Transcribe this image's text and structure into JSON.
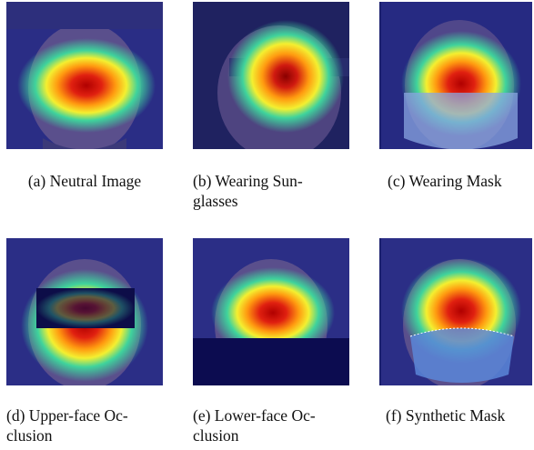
{
  "figure": {
    "panels": [
      {
        "id": "a",
        "caption_line1": "(a) Neutral Image",
        "caption_line2": "",
        "occlusion": "none"
      },
      {
        "id": "b",
        "caption_line1": "(b)  Wearing  Sun-",
        "caption_line2": "glasses",
        "occlusion": "sunglasses"
      },
      {
        "id": "c",
        "caption_line1": "(c) Wearing Mask",
        "caption_line2": "",
        "occlusion": "mask"
      },
      {
        "id": "d",
        "caption_line1": "(d)  Upper-face  Oc-",
        "caption_line2": "clusion",
        "occlusion": "upper-face block"
      },
      {
        "id": "e",
        "caption_line1": "(e)  Lower-face  Oc-",
        "caption_line2": "clusion",
        "occlusion": "lower-face block"
      },
      {
        "id": "f",
        "caption_line1": "(f) Synthetic Mask",
        "caption_line2": "",
        "occlusion": "synthetic mask"
      }
    ],
    "colors": {
      "background_tint": "#24288a",
      "heat_core": "#c00000",
      "heat_mid": "#ffd21a",
      "heat_outer": "#27c3a0",
      "mask_blue": "#5b86d8"
    }
  }
}
